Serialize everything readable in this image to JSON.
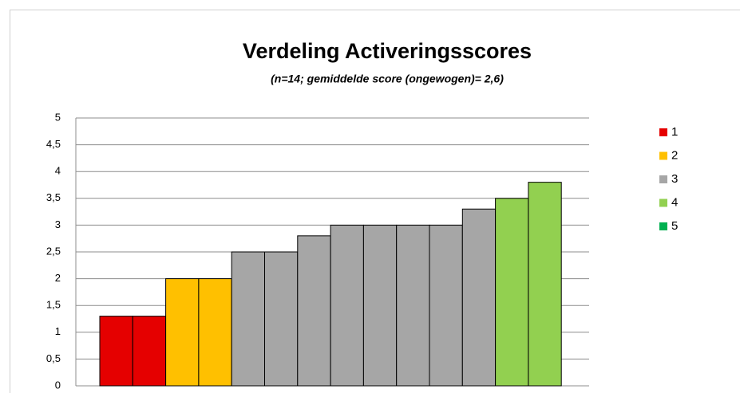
{
  "chart_data": {
    "type": "bar",
    "title": "Verdeling Activeringsscores",
    "subtitle": "(n=14; gemiddelde score (ongewogen)= 2,6)",
    "categories": [
      null,
      null,
      null,
      null,
      null,
      null,
      null,
      null,
      null,
      null,
      null,
      null,
      null,
      null
    ],
    "values": [
      1.3,
      1.3,
      2,
      2,
      2.5,
      2.5,
      2.8,
      3,
      3,
      3,
      3,
      3.3,
      3.5,
      3.8
    ],
    "colors": [
      "#e50000",
      "#e50000",
      "#ffc000",
      "#ffc000",
      "#a6a6a6",
      "#a6a6a6",
      "#a6a6a6",
      "#a6a6a6",
      "#a6a6a6",
      "#a6a6a6",
      "#a6a6a6",
      "#a6a6a6",
      "#92d050",
      "#92d050"
    ],
    "legend": [
      {
        "name": "1",
        "color": "#e50000"
      },
      {
        "name": "2",
        "color": "#ffc000"
      },
      {
        "name": "3",
        "color": "#a6a6a6"
      },
      {
        "name": "4",
        "color": "#92d050"
      },
      {
        "name": "5",
        "color": "#00b050"
      }
    ],
    "ylim": [
      0,
      5
    ],
    "yticks": [
      0,
      {
        "value": 0.5,
        "label": "0,5"
      },
      1,
      {
        "value": 1.5,
        "label": "1,5"
      },
      2,
      {
        "value": 2.5,
        "label": "2,5"
      },
      3,
      {
        "value": 3.5,
        "label": "3,5"
      },
      4,
      {
        "value": 4.5,
        "label": "4,5"
      },
      5
    ],
    "grid": true
  }
}
